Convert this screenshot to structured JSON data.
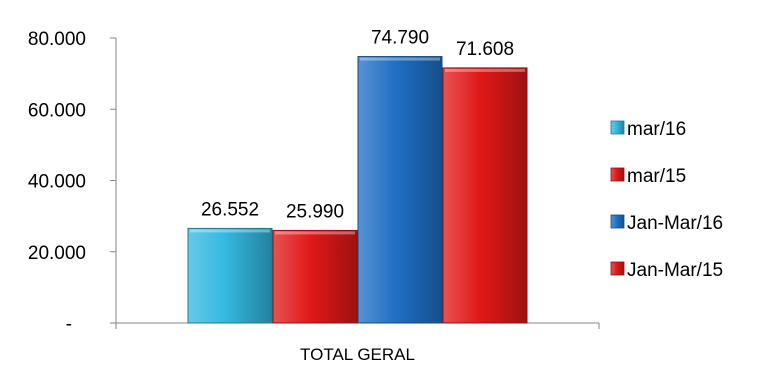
{
  "chart_data": {
    "type": "bar",
    "categories": [
      "TOTAL GERAL"
    ],
    "series": [
      {
        "name": "mar/16",
        "values": [
          26552
        ],
        "label": "26.552",
        "color": "#33b8e0"
      },
      {
        "name": "mar/15",
        "values": [
          25990
        ],
        "label": "25.990",
        "color": "#e01818"
      },
      {
        "name": "Jan-Mar/16",
        "values": [
          74790
        ],
        "label": "74.790",
        "color": "#1f6fc4"
      },
      {
        "name": "Jan-Mar/15",
        "values": [
          71608
        ],
        "label": "71.608",
        "color": "#e01818"
      }
    ],
    "ylim": [
      0,
      80000
    ],
    "yticks": [
      {
        "value": 0,
        "label": "-"
      },
      {
        "value": 20000,
        "label": "20.000"
      },
      {
        "value": 40000,
        "label": "40.000"
      },
      {
        "value": 60000,
        "label": "60.000"
      },
      {
        "value": 80000,
        "label": "80.000"
      }
    ],
    "grid": false,
    "legend_position": "right",
    "title": "",
    "xlabel": "",
    "ylabel": ""
  }
}
